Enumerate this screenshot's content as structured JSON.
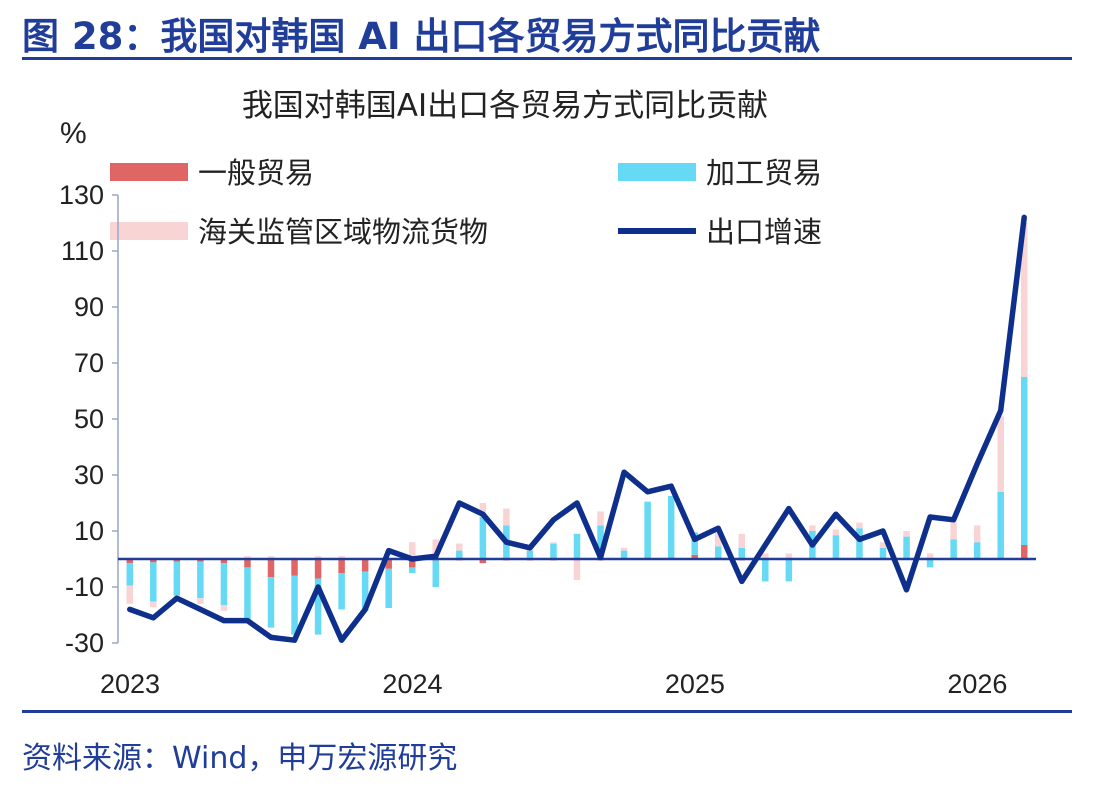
{
  "figure_title": "图 28：我国对韩国 AI 出口各贸易方式同比贡献",
  "source_note": "资料来源：Wind，申万宏源研究",
  "colors": {
    "general_trade": "#e06666",
    "processing_trade": "#66d9f5",
    "customs_zone": "#f9d4d4",
    "export_growth": "#0e2f8c",
    "rule": "#1f3d99",
    "axis": "#1f3d99"
  },
  "chart_data": {
    "type": "bar",
    "stacked": true,
    "title": "我国对韩国AI出口各贸易方式同比贡献",
    "ylabel": "%",
    "xlabel": "",
    "ylim": [
      -30,
      130
    ],
    "yticks": [
      130,
      110,
      90,
      70,
      50,
      30,
      10,
      -10,
      -30
    ],
    "xtick_labels": [
      "2023",
      "2024",
      "2025",
      "2026"
    ],
    "xtick_month_index": [
      0,
      12,
      24,
      36
    ],
    "grid": false,
    "legend_position": "top",
    "months": 39,
    "series": [
      {
        "name": "一般贸易",
        "kind": "bar",
        "values": [
          -1.5,
          -1.2,
          -1.0,
          -1.0,
          -1.5,
          -3.0,
          -6.5,
          -6.0,
          -7.0,
          -5.0,
          -4.5,
          -3.5,
          -3.0,
          -0.5,
          -0.5,
          -1.5,
          -0.5,
          -0.5,
          -0.5,
          -0.5,
          -0.5,
          -0.3,
          0.5,
          0.5,
          1.5,
          0.5,
          -0.5,
          0.0,
          0.0,
          0.0,
          0.0,
          0.0,
          0.0,
          0.0,
          0.0,
          0.0,
          0.0,
          0.0,
          5.0
        ]
      },
      {
        "name": "加工贸易",
        "kind": "bar",
        "values": [
          -8.0,
          -14.0,
          -12.0,
          -13.0,
          -15.0,
          -19.0,
          -18.0,
          -21.0,
          -20.0,
          -13.0,
          -14.0,
          -14.0,
          -2.0,
          -9.5,
          3.0,
          15.0,
          12.0,
          3.0,
          5.5,
          9.0,
          12.0,
          3.0,
          20.0,
          22.0,
          8.0,
          4.0,
          4.0,
          -8.0,
          -8.0,
          10.0,
          8.5,
          11.0,
          4.0,
          8.0,
          -3.0,
          7.0,
          6.0,
          24.0,
          60.0
        ]
      },
      {
        "name": "海关监管区域物流货物",
        "kind": "bar",
        "values": [
          -6.5,
          -2.0,
          -2.0,
          -2.0,
          -2.0,
          1.0,
          1.0,
          0.5,
          1.0,
          1.0,
          0.0,
          0.0,
          6.0,
          7.0,
          2.5,
          5.0,
          6.0,
          2.0,
          0.5,
          -7.0,
          5.0,
          1.0,
          0.0,
          0.0,
          0.0,
          5.0,
          5.0,
          2.0,
          2.0,
          2.0,
          2.0,
          2.0,
          2.0,
          2.0,
          2.0,
          6.0,
          6.0,
          27.0,
          55.0
        ]
      },
      {
        "name": "出口增速",
        "kind": "line",
        "values": [
          -18.0,
          -21.0,
          -14.0,
          -18.0,
          -22.0,
          -22.0,
          -28.0,
          -29.0,
          -10.0,
          -29.0,
          -18.0,
          3.0,
          0.0,
          1.0,
          20.0,
          16.0,
          6.0,
          4.0,
          14.0,
          20.0,
          0.5,
          31.0,
          24.0,
          26.0,
          7.0,
          11.0,
          -8.0,
          5.0,
          18.0,
          5.0,
          16.0,
          7.0,
          10.0,
          -11.0,
          15.0,
          14.0,
          34.0,
          53.0,
          122.0
        ]
      }
    ]
  }
}
